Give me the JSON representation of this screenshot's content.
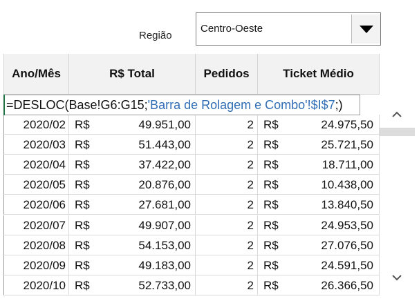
{
  "filter": {
    "label": "Região",
    "selected": "Centro-Oeste"
  },
  "table": {
    "headers": [
      "Ano/Mês",
      "R$ Total",
      "Pedidos",
      "Ticket Médio"
    ],
    "formula": [
      "=DESLOC(",
      "Base!G6:G15",
      ";",
      "'Barra de Rolagem e Combo'!$I$7",
      ";)"
    ],
    "rows": [
      [
        "2020/02",
        "R$",
        "49.951,00",
        "2",
        "R$",
        "24.975,50"
      ],
      [
        "2020/03",
        "R$",
        "51.443,00",
        "2",
        "R$",
        "25.721,50"
      ],
      [
        "2020/04",
        "R$",
        "37.422,00",
        "2",
        "R$",
        "18.711,00"
      ],
      [
        "2020/05",
        "R$",
        "20.876,00",
        "2",
        "R$",
        "10.438,00"
      ],
      [
        "2020/06",
        "R$",
        "27.681,00",
        "2",
        "R$",
        "13.840,50"
      ],
      [
        "2020/07",
        "R$",
        "49.907,00",
        "2",
        "R$",
        "24.953,50"
      ],
      [
        "2020/08",
        "R$",
        "54.153,00",
        "2",
        "R$",
        "27.076,50"
      ],
      [
        "2020/09",
        "R$",
        "49.183,00",
        "2",
        "R$",
        "24.591,50"
      ],
      [
        "2020/10",
        "R$",
        "52.733,00",
        "2",
        "R$",
        "26.366,50"
      ]
    ]
  }
}
